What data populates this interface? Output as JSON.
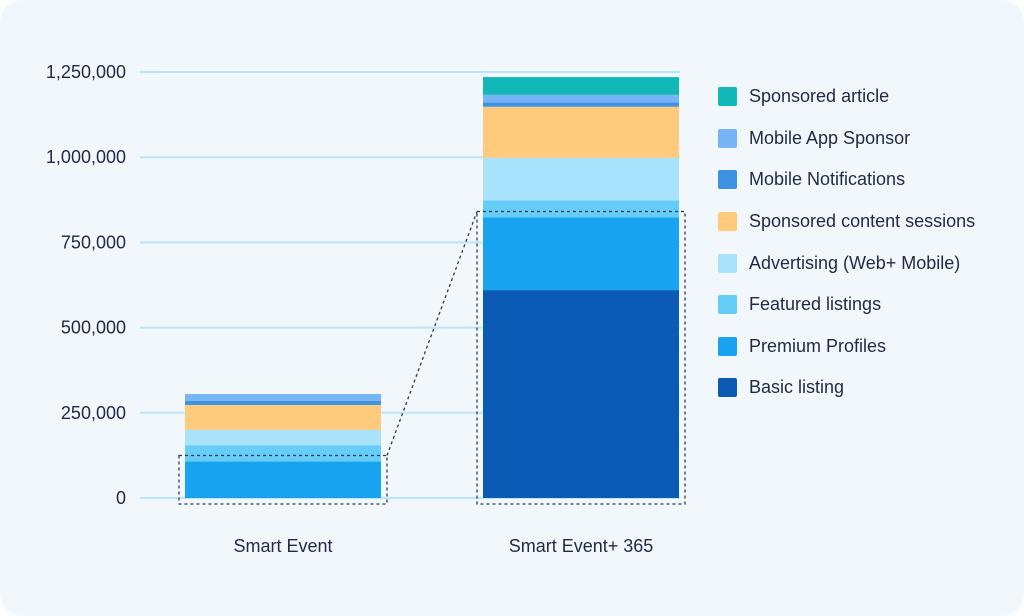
{
  "chart_data": {
    "type": "bar",
    "stacked": true,
    "categories": [
      "Smart Event",
      "Smart Event+ 365"
    ],
    "ylim": [
      0,
      1250000
    ],
    "yticks": [
      0,
      250000,
      500000,
      750000,
      1000000,
      1250000
    ],
    "ytick_labels": [
      "0",
      "250,000",
      "500,000",
      "750,000",
      "1,000,000",
      "1,250,000"
    ],
    "grid": true,
    "legend_position": "right",
    "series": [
      {
        "name": "Basic listing",
        "color": "#0b5bb5",
        "values": [
          0,
          610000
        ]
      },
      {
        "name": "Premium Profiles",
        "color": "#17a3ef",
        "values": [
          107000,
          213000
        ]
      },
      {
        "name": "Featured listings",
        "color": "#66ccf8",
        "values": [
          48000,
          50000
        ]
      },
      {
        "name": "Advertising (Web+ Mobile)",
        "color": "#a8e3fb",
        "values": [
          45000,
          125000
        ]
      },
      {
        "name": "Sponsored content sessions",
        "color": "#fecb7d",
        "values": [
          73000,
          150000
        ]
      },
      {
        "name": "Mobile Notifications",
        "color": "#3f92e3",
        "values": [
          12000,
          13000
        ]
      },
      {
        "name": "Mobile App Sponsor",
        "color": "#76b4f6",
        "values": [
          20000,
          22000
        ]
      },
      {
        "name": "Sponsored article",
        "color": "#10b8b8",
        "values": [
          0,
          52000
        ]
      }
    ],
    "legend_order": [
      "Sponsored article",
      "Mobile App Sponsor",
      "Mobile Notifications",
      "Sponsored content sessions",
      "Advertising (Web+ Mobile)",
      "Featured listings",
      "Premium Profiles",
      "Basic listing"
    ],
    "annotation": "dashed zoom boxes around the lower segment of each bar, joined by a dotted line"
  }
}
